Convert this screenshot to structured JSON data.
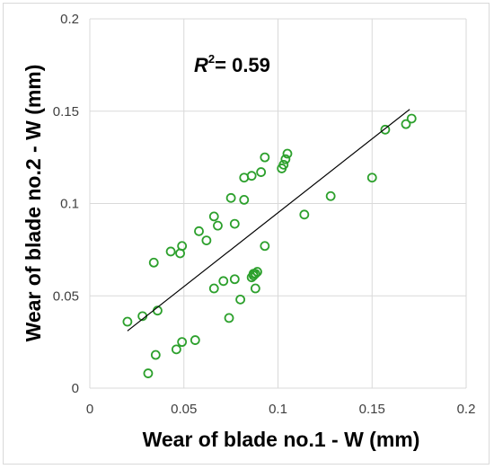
{
  "chart_data": {
    "type": "scatter",
    "xlabel": "Wear of blade no.1 - W (mm)",
    "ylabel": "Wear of blade no.2 - W (mm)",
    "xlim": [
      0,
      0.2
    ],
    "ylim": [
      0,
      0.2
    ],
    "xticks": [
      "0",
      "0.05",
      "0.1",
      "0.15",
      "0.2"
    ],
    "yticks": [
      "0",
      "0.05",
      "0.1",
      "0.15",
      "0.2"
    ],
    "grid": true,
    "marker_color": "#2ca02c",
    "trendline_color": "#000000",
    "annotation": {
      "r_symbol": "R",
      "superscript": "2",
      "value": "= 0.59"
    },
    "trendline": {
      "x": [
        0.02,
        0.17
      ],
      "y": [
        0.031,
        0.151
      ]
    },
    "series": [
      {
        "x": [
          0.02,
          0.028,
          0.031,
          0.034,
          0.035,
          0.036,
          0.043,
          0.046,
          0.048,
          0.049,
          0.049,
          0.056,
          0.058,
          0.062,
          0.066,
          0.066,
          0.068,
          0.071,
          0.074,
          0.075,
          0.077,
          0.077,
          0.08,
          0.082,
          0.082,
          0.086,
          0.086,
          0.087,
          0.087,
          0.088,
          0.088,
          0.089,
          0.091,
          0.093,
          0.093,
          0.102,
          0.103,
          0.104,
          0.105,
          0.114,
          0.128,
          0.15,
          0.157,
          0.168,
          0.171
        ],
        "y": [
          0.036,
          0.039,
          0.008,
          0.068,
          0.018,
          0.042,
          0.074,
          0.021,
          0.073,
          0.077,
          0.025,
          0.026,
          0.085,
          0.08,
          0.093,
          0.054,
          0.088,
          0.058,
          0.038,
          0.103,
          0.089,
          0.059,
          0.048,
          0.114,
          0.102,
          0.115,
          0.06,
          0.061,
          0.062,
          0.054,
          0.062,
          0.063,
          0.117,
          0.125,
          0.077,
          0.119,
          0.121,
          0.124,
          0.127,
          0.094,
          0.104,
          0.114,
          0.14,
          0.143,
          0.146
        ]
      }
    ]
  }
}
